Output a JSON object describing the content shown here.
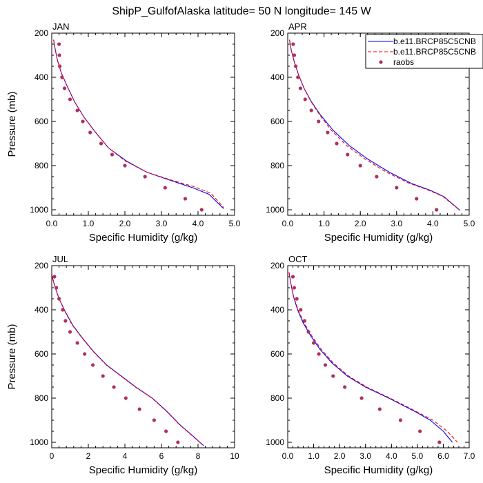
{
  "title": "ShipP_GulfofAlaska  latitude= 50 N longitude= 145 W",
  "legend": {
    "placement": "top-right",
    "entries": [
      {
        "label": "b.e11.BRCP85C5CNB",
        "style": "solid",
        "color": "#0000ff"
      },
      {
        "label": "b.e11.BRCP85C5CNB",
        "style": "dashed",
        "color": "#ff0000"
      },
      {
        "label": "raobs",
        "style": "dot",
        "color": "#b03060"
      }
    ]
  },
  "chart_data": [
    {
      "type": "line",
      "panel": "JAN",
      "xlabel": "Specific Humidity (g/kg)",
      "ylabel": "Pressure (mb)",
      "xlim": [
        0,
        5
      ],
      "ylim": [
        1025,
        200
      ],
      "xticks": [
        "0.0",
        "1.0",
        "2.0",
        "3.0",
        "4.0",
        "5.0"
      ],
      "xtick_values": [
        0,
        1,
        2,
        3,
        4,
        5
      ],
      "yticks": [
        "200",
        "400",
        "600",
        "800",
        "1000"
      ],
      "ytick_values": [
        200,
        400,
        600,
        800,
        1000
      ],
      "series": [
        {
          "name": "b.e11.BRCP85C5CNB",
          "style": "solid",
          "color": "#0000ff",
          "x": [
            0.05,
            0.09,
            0.15,
            0.26,
            0.42,
            0.62,
            0.88,
            1.2,
            1.55,
            2.05,
            2.6,
            3.3,
            3.85,
            4.3,
            4.7
          ],
          "y": [
            230,
            270,
            320,
            380,
            440,
            510,
            580,
            650,
            720,
            780,
            830,
            870,
            900,
            930,
            995
          ]
        },
        {
          "name": "b.e11.BRCP85C5CNB",
          "style": "dashed",
          "color": "#ff0000",
          "x": [
            0.05,
            0.09,
            0.15,
            0.26,
            0.42,
            0.62,
            0.88,
            1.2,
            1.55,
            2.02,
            2.6,
            3.32,
            3.9,
            4.35,
            4.7
          ],
          "y": [
            230,
            270,
            320,
            380,
            440,
            510,
            580,
            650,
            720,
            780,
            830,
            868,
            896,
            925,
            990
          ]
        },
        {
          "name": "raobs",
          "style": "dot",
          "color": "#b03060",
          "x": [
            0.2,
            0.21,
            0.22,
            0.28,
            0.35,
            0.5,
            0.7,
            0.85,
            1.05,
            1.35,
            1.65,
            2.0,
            2.55,
            3.1,
            3.65,
            4.1
          ],
          "y": [
            250,
            300,
            350,
            400,
            450,
            500,
            550,
            600,
            650,
            700,
            750,
            800,
            850,
            900,
            950,
            1000
          ]
        }
      ]
    },
    {
      "type": "line",
      "panel": "APR",
      "xlabel": "Specific Humidity (g/kg)",
      "ylabel": "",
      "xlim": [
        0,
        5
      ],
      "ylim": [
        1025,
        200
      ],
      "xticks": [
        "0.0",
        "1.0",
        "2.0",
        "3.0",
        "4.0",
        "5.0"
      ],
      "xtick_values": [
        0,
        1,
        2,
        3,
        4,
        5
      ],
      "yticks": [
        "200",
        "400",
        "600",
        "800",
        "1000"
      ],
      "ytick_values": [
        200,
        400,
        600,
        800,
        1000
      ],
      "series": [
        {
          "name": "b.e11.BRCP85C5CNB",
          "style": "solid",
          "color": "#0000ff",
          "x": [
            0.05,
            0.1,
            0.18,
            0.3,
            0.45,
            0.65,
            0.9,
            1.25,
            1.7,
            2.2,
            2.8,
            3.4,
            3.9,
            4.3,
            4.75
          ],
          "y": [
            230,
            280,
            330,
            390,
            450,
            510,
            570,
            640,
            710,
            770,
            830,
            880,
            910,
            940,
            1003
          ]
        },
        {
          "name": "b.e11.BRCP85C5CNB",
          "style": "dashed",
          "color": "#ff0000",
          "x": [
            0.05,
            0.1,
            0.18,
            0.3,
            0.45,
            0.64,
            0.88,
            1.2,
            1.63,
            2.13,
            2.72,
            3.35,
            3.86,
            4.28,
            4.72
          ],
          "y": [
            230,
            280,
            330,
            390,
            450,
            510,
            570,
            640,
            710,
            770,
            830,
            880,
            910,
            940,
            1000
          ]
        },
        {
          "name": "raobs",
          "style": "dot",
          "color": "#b03060",
          "x": [
            0.15,
            0.18,
            0.22,
            0.28,
            0.35,
            0.48,
            0.65,
            0.85,
            1.1,
            1.35,
            1.65,
            2.0,
            2.45,
            3.0,
            3.55,
            4.1
          ],
          "y": [
            250,
            300,
            350,
            400,
            450,
            500,
            550,
            600,
            650,
            700,
            750,
            800,
            850,
            900,
            950,
            1000
          ]
        }
      ]
    },
    {
      "type": "line",
      "panel": "JUL",
      "xlabel": "Specific Humidity (g/kg)",
      "ylabel": "Pressure (mb)",
      "xlim": [
        0,
        10
      ],
      "ylim": [
        1025,
        200
      ],
      "xticks": [
        "0",
        "2",
        "4",
        "6",
        "8",
        "10"
      ],
      "xtick_values": [
        0,
        2,
        4,
        6,
        8,
        10
      ],
      "yticks": [
        "200",
        "400",
        "600",
        "800",
        "1000"
      ],
      "ytick_values": [
        200,
        400,
        600,
        800,
        1000
      ],
      "series": [
        {
          "name": "b.e11.BRCP85C5CNB",
          "style": "solid",
          "color": "#0000ff",
          "x": [
            0.0,
            0.15,
            0.4,
            0.75,
            1.15,
            1.7,
            2.3,
            3.0,
            3.8,
            4.6,
            5.5,
            6.3,
            7.0,
            7.7,
            8.3
          ],
          "y": [
            240,
            290,
            350,
            410,
            470,
            530,
            590,
            650,
            700,
            750,
            800,
            860,
            920,
            970,
            1015
          ]
        },
        {
          "name": "b.e11.BRCP85C5CNB",
          "style": "dashed",
          "color": "#ff0000",
          "x": [
            0.0,
            0.15,
            0.4,
            0.74,
            1.13,
            1.68,
            2.28,
            2.98,
            3.78,
            4.58,
            5.48,
            6.28,
            6.98,
            7.68,
            8.25
          ],
          "y": [
            240,
            290,
            350,
            410,
            470,
            530,
            590,
            650,
            700,
            750,
            800,
            860,
            920,
            970,
            1012
          ]
        },
        {
          "name": "raobs",
          "style": "dot",
          "color": "#b03060",
          "x": [
            0.15,
            0.25,
            0.4,
            0.6,
            0.75,
            1.0,
            1.4,
            1.8,
            2.25,
            2.8,
            3.4,
            4.05,
            4.8,
            5.6,
            6.25,
            6.9
          ],
          "y": [
            250,
            300,
            350,
            400,
            450,
            500,
            550,
            600,
            650,
            700,
            750,
            800,
            850,
            900,
            950,
            1000
          ]
        }
      ]
    },
    {
      "type": "line",
      "panel": "OCT",
      "xlabel": "Specific Humidity (g/kg)",
      "ylabel": "",
      "xlim": [
        0,
        7
      ],
      "ylim": [
        1025,
        200
      ],
      "xticks": [
        "0.0",
        "1.0",
        "2.0",
        "3.0",
        "4.0",
        "5.0",
        "6.0",
        "7.0"
      ],
      "xtick_values": [
        0,
        1,
        2,
        3,
        4,
        5,
        6,
        7
      ],
      "yticks": [
        "200",
        "400",
        "600",
        "800",
        "1000"
      ],
      "ytick_values": [
        200,
        400,
        600,
        800,
        1000
      ],
      "series": [
        {
          "name": "b.e11.BRCP85C5CNB",
          "style": "solid",
          "color": "#0000ff",
          "x": [
            0.05,
            0.12,
            0.22,
            0.38,
            0.6,
            0.9,
            1.25,
            1.7,
            2.3,
            3.0,
            3.9,
            4.9,
            5.5,
            6.0,
            6.35
          ],
          "y": [
            230,
            280,
            340,
            400,
            460,
            520,
            580,
            640,
            700,
            750,
            800,
            860,
            900,
            950,
            1000
          ]
        },
        {
          "name": "b.e11.BRCP85C5CNB",
          "style": "dashed",
          "color": "#ff0000",
          "x": [
            0.05,
            0.12,
            0.23,
            0.4,
            0.63,
            0.94,
            1.3,
            1.75,
            2.35,
            3.05,
            3.95,
            4.95,
            5.6,
            6.15,
            6.55
          ],
          "y": [
            230,
            280,
            340,
            400,
            460,
            520,
            580,
            640,
            700,
            750,
            800,
            860,
            900,
            950,
            1000
          ]
        },
        {
          "name": "raobs",
          "style": "dot",
          "color": "#b03060",
          "x": [
            0.2,
            0.25,
            0.35,
            0.5,
            0.65,
            0.8,
            1.0,
            1.2,
            1.45,
            1.75,
            2.2,
            2.85,
            3.55,
            4.35,
            5.1,
            5.85
          ],
          "y": [
            250,
            300,
            350,
            400,
            450,
            500,
            550,
            600,
            650,
            700,
            750,
            800,
            850,
            900,
            950,
            1000
          ]
        }
      ]
    }
  ]
}
